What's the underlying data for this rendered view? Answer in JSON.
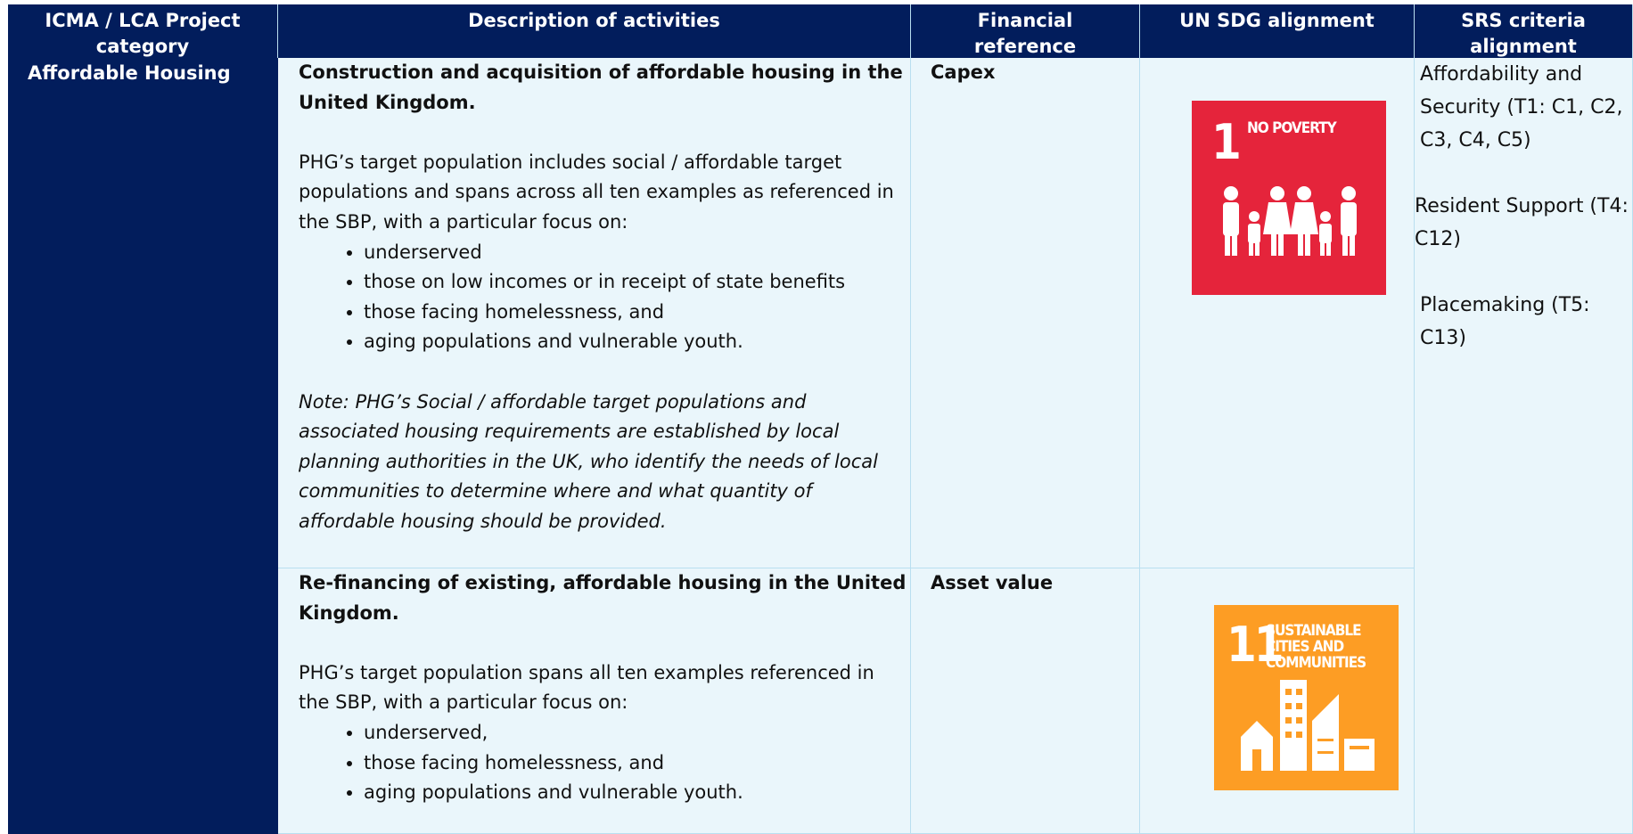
{
  "table": {
    "header": [
      "ICMA / LCA Project category",
      "Description of activities",
      "Financial reference",
      "UN SDG alignment",
      "SRS criteria alignment"
    ],
    "category": "Affordable Housing",
    "rows": [
      {
        "title": "Construction and acquisition of affordable housing in the United Kingdom.",
        "intro": "PHG’s target population includes social / affordable target populations and spans across all ten examples as referenced in the SBP, with a particular focus on:",
        "bullets": [
          "underserved",
          "those on low incomes or in receipt of state benefits",
          "those facing homelessness, and",
          "aging populations and vulnerable youth."
        ],
        "note": "Note: PHG’s Social / affordable target populations and associated housing requirements are established by local planning authorities in the UK, who identify the needs of local communities to determine where and what quantity of affordable housing should be provided.",
        "financial_reference": "Capex",
        "sdg": {
          "number": "1",
          "name": "NO POVERTY"
        }
      },
      {
        "title": "Re-financing of existing, affordable housing in the United Kingdom.",
        "intro": "PHG’s target population spans all ten examples referenced in the SBP, with a particular focus on:",
        "bullets": [
          "underserved,",
          "those facing homelessness, and",
          "aging populations and vulnerable youth."
        ],
        "financial_reference": "Asset value",
        "sdg": {
          "number": "11",
          "name": "SUSTAINABLE CITIES AND COMMUNITIES"
        }
      }
    ],
    "srs_criteria": [
      "Affordability and Security (T1: C1, C2, C3, C4, C5)",
      "Resident Support (T4: C12)",
      "Placemaking (T5: C13)"
    ]
  }
}
